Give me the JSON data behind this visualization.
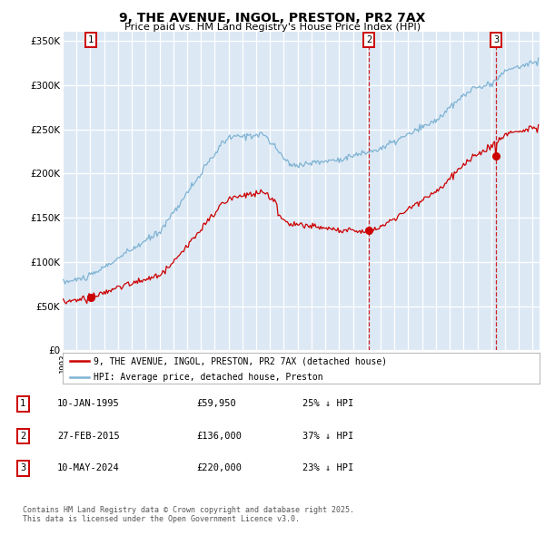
{
  "title": "9, THE AVENUE, INGOL, PRESTON, PR2 7AX",
  "subtitle": "Price paid vs. HM Land Registry's House Price Index (HPI)",
  "bg_color": "#dce9f5",
  "hpi_color": "#7fb3d3",
  "price_color": "#cc0000",
  "vline_color": "#cc0000",
  "ylim": [
    0,
    360000
  ],
  "yticks": [
    0,
    50000,
    100000,
    150000,
    200000,
    250000,
    300000,
    350000
  ],
  "ytick_labels": [
    "£0",
    "£50K",
    "£100K",
    "£150K",
    "£200K",
    "£250K",
    "£300K",
    "£350K"
  ],
  "xlim_start": 1993.0,
  "xlim_end": 2027.5,
  "sale1_date": 1995.04,
  "sale1_price": 59950,
  "sale2_date": 2015.16,
  "sale2_price": 136000,
  "sale3_date": 2024.36,
  "sale3_price": 220000,
  "legend_line1": "9, THE AVENUE, INGOL, PRESTON, PR2 7AX (detached house)",
  "legend_line2": "HPI: Average price, detached house, Preston",
  "table_entries": [
    {
      "num": "1",
      "date": "10-JAN-1995",
      "price": "£59,950",
      "pct": "25% ↓ HPI"
    },
    {
      "num": "2",
      "date": "27-FEB-2015",
      "price": "£136,000",
      "pct": "37% ↓ HPI"
    },
    {
      "num": "3",
      "date": "10-MAY-2024",
      "price": "£220,000",
      "pct": "23% ↓ HPI"
    }
  ],
  "footer": "Contains HM Land Registry data © Crown copyright and database right 2025.\nThis data is licensed under the Open Government Licence v3.0."
}
